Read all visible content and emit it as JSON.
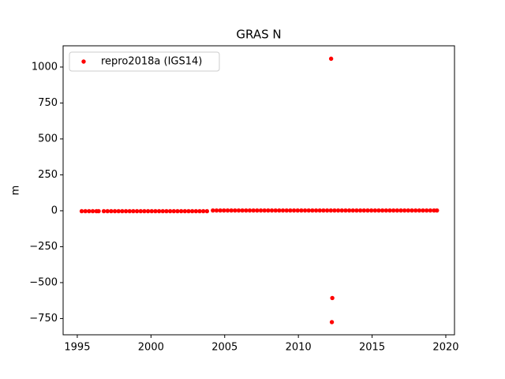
{
  "chart_data": {
    "type": "scatter",
    "title": "GRAS N",
    "y_label": "m",
    "xlim": [
      1994.04,
      2020.59
    ],
    "ylim": [
      -863,
      1148
    ],
    "xticks": [
      1995,
      2000,
      2005,
      2010,
      2015,
      2020
    ],
    "yticks": [
      {
        "value": -750,
        "label": "−750"
      },
      {
        "value": -500,
        "label": "−500"
      },
      {
        "value": -250,
        "label": "−250"
      },
      0,
      250,
      500,
      750,
      1000
    ],
    "legend": "upper left",
    "series": [
      {
        "name": "repro2018a (IGS14)",
        "color": "#ff0000",
        "x": [
          1995.3,
          1995.55,
          1995.8,
          1996.05,
          1996.3,
          1996.45,
          1996.8,
          1997.05,
          1997.3,
          1997.55,
          1997.8,
          1998.05,
          1998.3,
          1998.55,
          1998.8,
          1999.05,
          1999.3,
          1999.55,
          1999.8,
          2000.05,
          2000.3,
          2000.55,
          2000.8,
          2001.05,
          2001.3,
          2001.55,
          2001.8,
          2002.05,
          2002.3,
          2002.55,
          2002.8,
          2003.05,
          2003.3,
          2003.55,
          2003.8,
          2004.2,
          2004.45,
          2004.7,
          2004.95,
          2005.2,
          2005.45,
          2005.7,
          2005.95,
          2006.2,
          2006.45,
          2006.7,
          2006.95,
          2007.2,
          2007.45,
          2007.7,
          2007.95,
          2008.2,
          2008.45,
          2008.7,
          2008.95,
          2009.2,
          2009.45,
          2009.7,
          2009.95,
          2010.2,
          2010.45,
          2010.7,
          2010.95,
          2011.2,
          2011.45,
          2011.7,
          2011.95,
          2012.2,
          2012.45,
          2012.7,
          2012.95,
          2013.2,
          2013.45,
          2013.7,
          2013.95,
          2014.2,
          2014.45,
          2014.7,
          2014.95,
          2015.2,
          2015.45,
          2015.7,
          2015.95,
          2016.2,
          2016.45,
          2016.7,
          2016.95,
          2017.2,
          2017.45,
          2017.7,
          2017.95,
          2018.2,
          2018.45,
          2018.7,
          2018.95,
          2019.2,
          2019.4,
          2012.22,
          2012.3,
          2012.27
        ],
        "values": [
          -3,
          -3,
          -3,
          -3,
          -3,
          -3,
          -3,
          -3,
          -3,
          -3,
          -3,
          -3,
          -3,
          -3,
          -3,
          -3,
          -3,
          -3,
          -3,
          -3,
          -3,
          -3,
          -3,
          -3,
          -3,
          -3,
          -3,
          -3,
          -3,
          -3,
          -3,
          -3,
          -3,
          -3,
          -3,
          2,
          2,
          2,
          2,
          2,
          2,
          2,
          2,
          2,
          2,
          2,
          2,
          2,
          2,
          2,
          2,
          2,
          2,
          2,
          2,
          2,
          2,
          2,
          2,
          2,
          2,
          2,
          2,
          2,
          2,
          2,
          2,
          2,
          2,
          2,
          2,
          2,
          2,
          2,
          2,
          2,
          2,
          2,
          2,
          2,
          2,
          2,
          2,
          2,
          2,
          2,
          2,
          2,
          2,
          2,
          2,
          2,
          2,
          2,
          2,
          2,
          2,
          1058,
          -607,
          -775
        ]
      }
    ]
  }
}
